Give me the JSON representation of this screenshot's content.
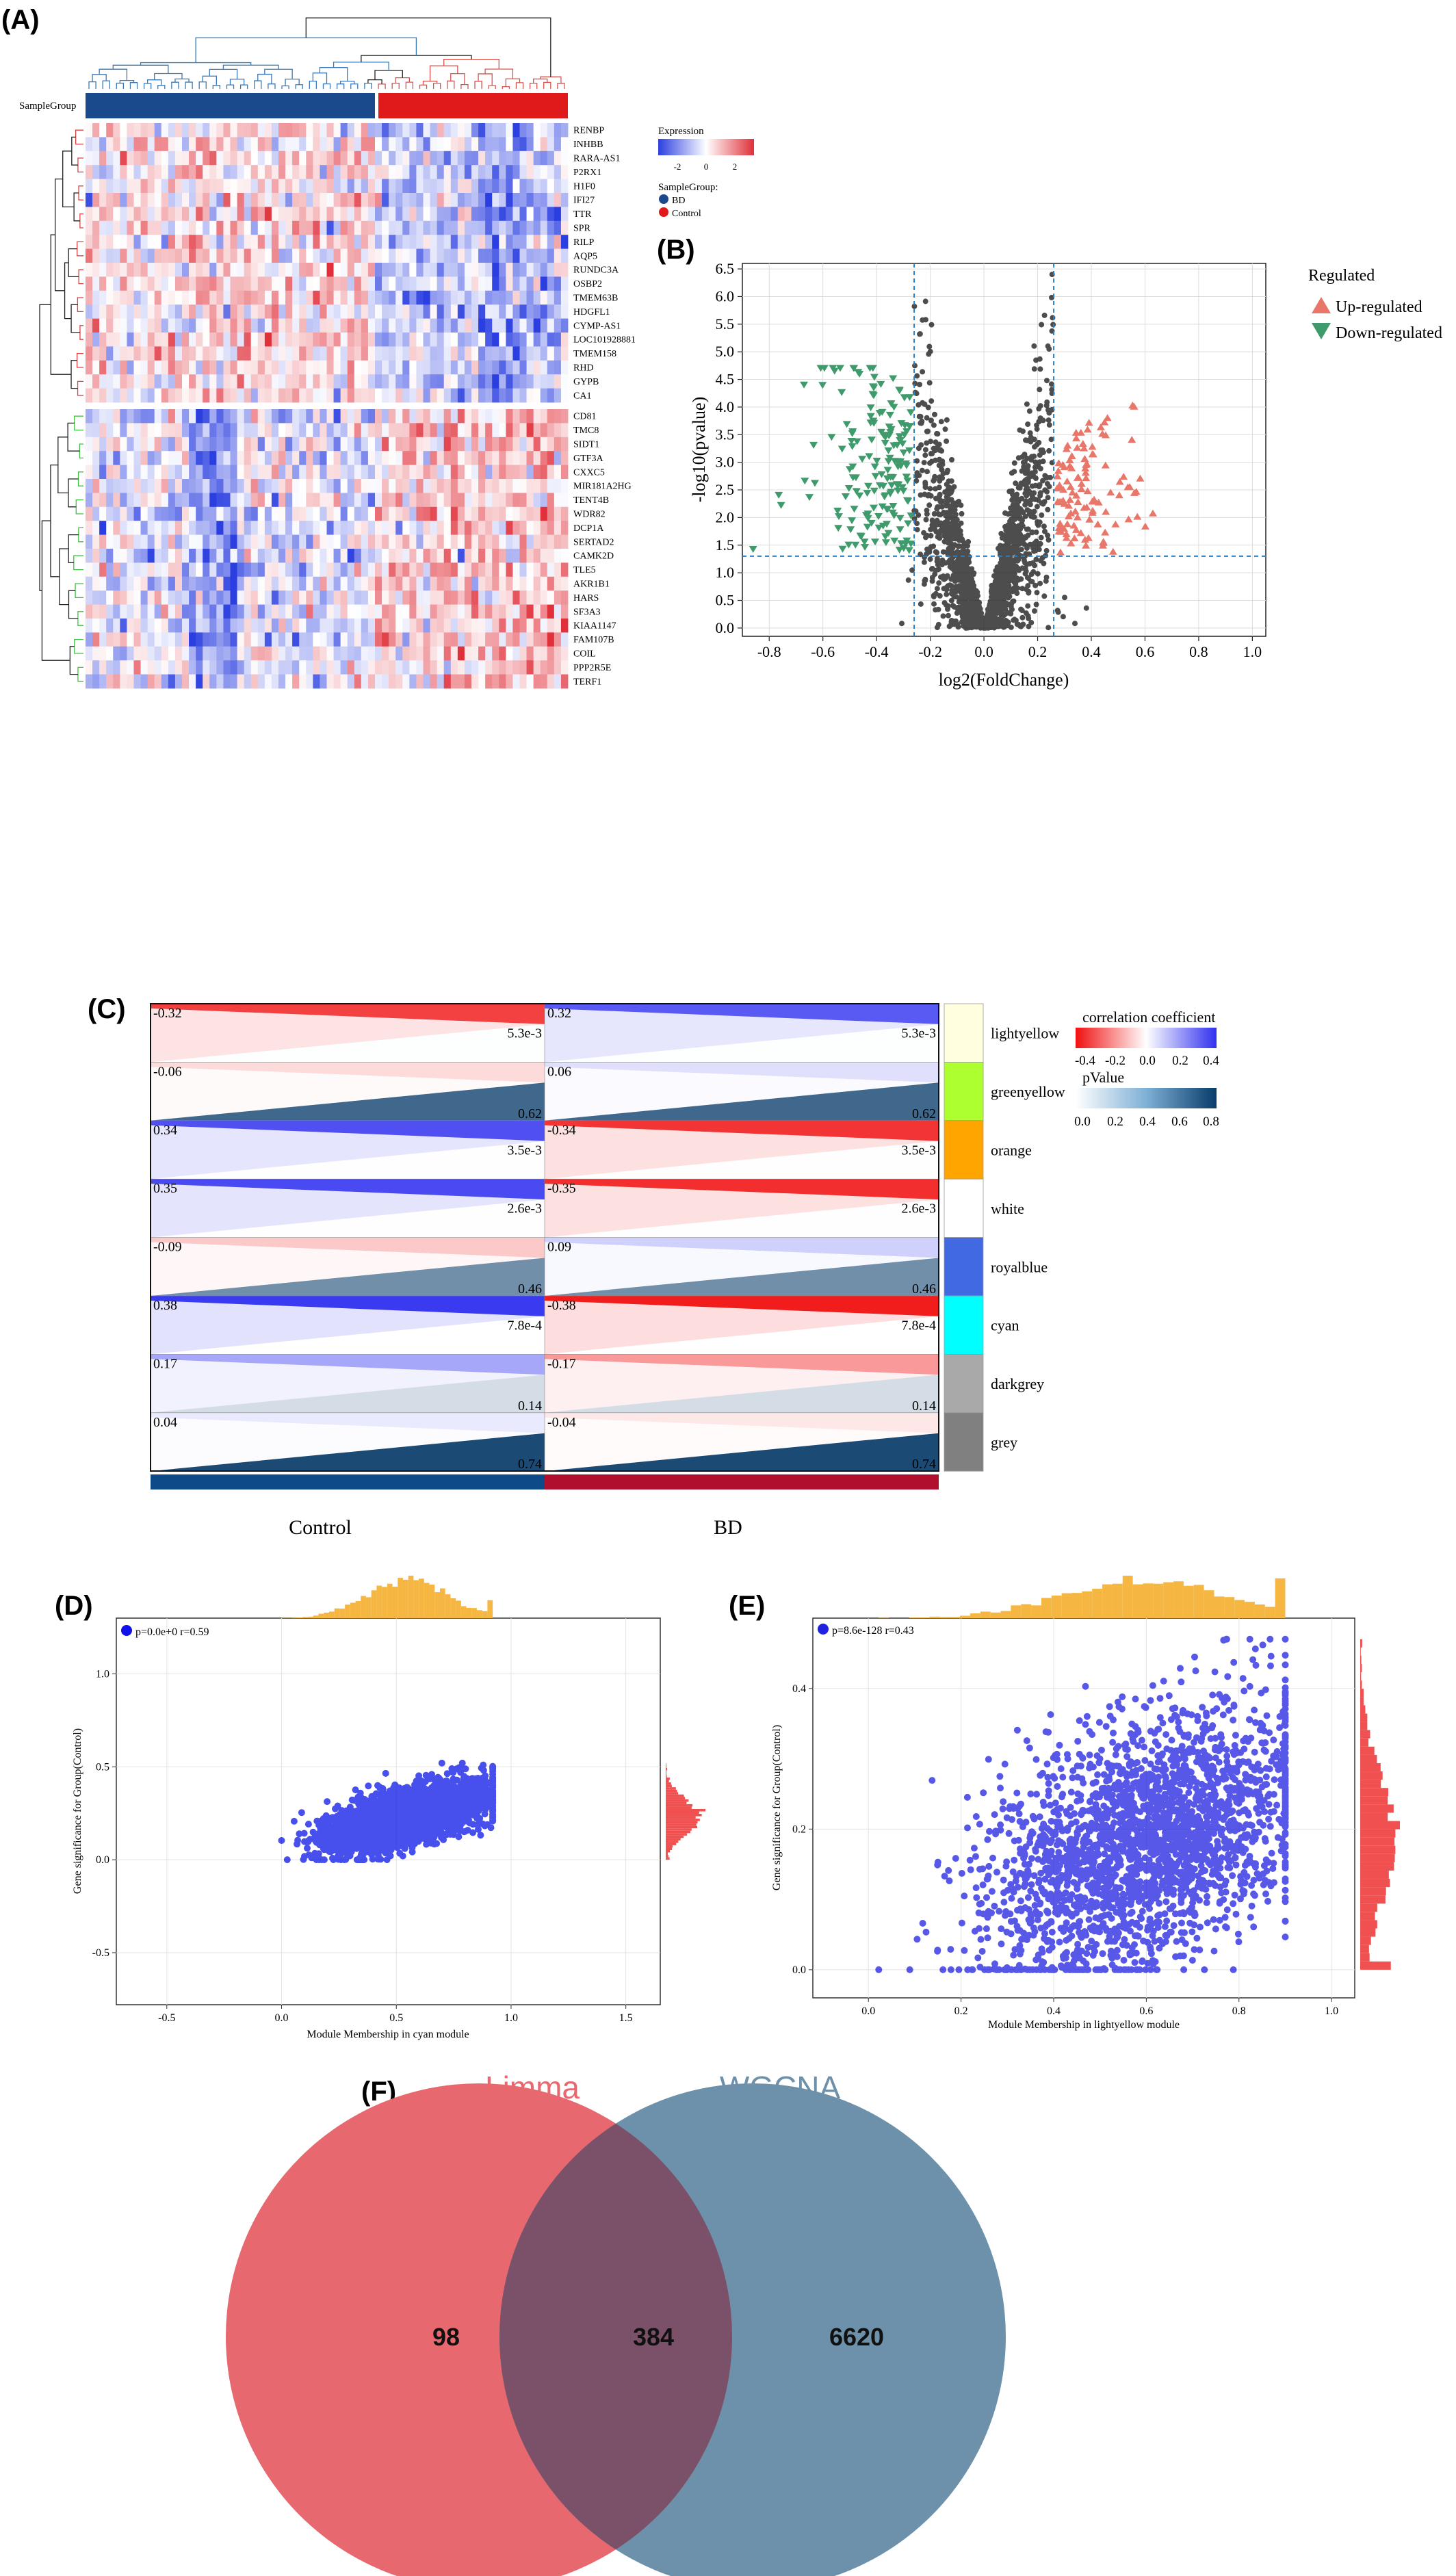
{
  "panels": {
    "A": "(A)",
    "B": "(B)",
    "C": "(C)",
    "D": "(D)",
    "E": "(E)",
    "F": "(F)"
  },
  "heatmap": {
    "sample_group_label": "SampleGroup",
    "genes_up": [
      "RENBP",
      "INHBB",
      "RARA-AS1",
      "P2RX1",
      "H1F0",
      "IFI27",
      "TTR",
      "SPR",
      "RILP",
      "AQP5",
      "RUNDC3A",
      "OSBP2",
      "TMEM63B",
      "HDGFL1",
      "CYMP-AS1",
      "LOC101928881",
      "TMEM158",
      "RHD",
      "GYPB",
      "CA1"
    ],
    "genes_down": [
      "CD81",
      "TMC8",
      "SIDT1",
      "GTF3A",
      "CXXC5",
      "MIR181A2HG",
      "TENT4B",
      "WDR82",
      "DCP1A",
      "SERTAD2",
      "CAMK2D",
      "TLE5",
      "AKR1B1",
      "HARS",
      "SF3A3",
      "KIAA1147",
      "FAM107B",
      "COIL",
      "PPP2R5E",
      "TERF1"
    ],
    "legend": {
      "expression_title": "Expression",
      "ticks": [
        "-2",
        "0",
        "2"
      ],
      "group_title": "SampleGroup:",
      "groups": [
        "BD",
        "Control"
      ],
      "group_colors": [
        "#1a4a8c",
        "#e01a1a"
      ]
    },
    "colors": {
      "low": "#2b3fe0",
      "mid": "#ffffff",
      "high": "#e0303a"
    }
  },
  "chart_data": [
    {
      "panel": "B",
      "type": "scatter",
      "xlabel": "log2(FoldChange)",
      "ylabel": "-log10(pvalue)",
      "xlim": [
        -0.9,
        1.05
      ],
      "ylim": [
        -0.15,
        6.6
      ],
      "xticks": [
        "-0.8",
        "-0.6",
        "-0.4",
        "-0.2",
        "0.0",
        "0.2",
        "0.4",
        "0.6",
        "0.8",
        "1.0"
      ],
      "yticks": [
        "0.0",
        "0.5",
        "1.0",
        "1.5",
        "2.0",
        "2.5",
        "3.0",
        "3.5",
        "4.0",
        "4.5",
        "5.0",
        "5.5",
        "6.0",
        "6.5"
      ],
      "thresholds": {
        "x": [
          -0.26,
          0.26
        ],
        "y": 1.3
      },
      "grid": true,
      "legend": {
        "title": "Regulated",
        "entries": [
          "Up-regulated",
          "Down-regulated"
        ],
        "colors": [
          "#e8776a",
          "#3f9a6c"
        ],
        "position": "right"
      },
      "colors": {
        "ns": "#111111"
      }
    },
    {
      "panel": "C",
      "type": "heatmap",
      "columns": [
        "Control",
        "BD"
      ],
      "modules": [
        "lightyellow",
        "greenyellow",
        "orange",
        "white",
        "royalblue",
        "cyan",
        "darkgrey",
        "grey"
      ],
      "module_colors": [
        "#ffffe0",
        "#adff2f",
        "#ffa500",
        "#ffffff",
        "#4169e1",
        "#00ffff",
        "#a9a9a9",
        "#808080"
      ],
      "correlation": [
        [
          -0.32,
          0.32
        ],
        [
          -0.06,
          0.06
        ],
        [
          0.34,
          -0.34
        ],
        [
          0.35,
          -0.35
        ],
        [
          -0.09,
          0.09
        ],
        [
          0.38,
          -0.38
        ],
        [
          0.17,
          -0.17
        ],
        [
          0.04,
          -0.04
        ]
      ],
      "correlation_labels": [
        [
          "-0.32",
          "0.32"
        ],
        [
          "-0.06",
          "0.06"
        ],
        [
          "0.34",
          "-0.34"
        ],
        [
          "0.35",
          "-0.35"
        ],
        [
          "-0.09",
          "0.09"
        ],
        [
          "0.38",
          "-0.38"
        ],
        [
          "0.17",
          "-0.17"
        ],
        [
          "0.04",
          "-0.04"
        ]
      ],
      "pvalues": [
        0.0053,
        0.62,
        0.0035,
        0.0026,
        0.46,
        0.00078,
        0.14,
        0.74
      ],
      "pvalue_labels": [
        "5.3e-3",
        "0.62",
        "3.5e-3",
        "2.6e-3",
        "0.46",
        "7.8e-4",
        "0.14",
        "0.74"
      ],
      "legend": {
        "corr_title": "correlation coefficient",
        "corr_ticks": [
          "-0.4",
          "-0.2",
          "0.0",
          "0.2",
          "0.4"
        ],
        "p_title": "pValue",
        "p_ticks": [
          "0.0",
          "0.2",
          "0.4",
          "0.6",
          "0.8"
        ]
      },
      "column_bar_colors": [
        "#0f4a88",
        "#b0102e"
      ]
    },
    {
      "panel": "D",
      "type": "scatter",
      "annotation": "p=0.0e+0 r=0.59",
      "xlabel": "Module Membership in cyan module",
      "ylabel": "Gene significance for Group(Control)",
      "xlim": [
        -0.72,
        1.65
      ],
      "ylim": [
        -0.78,
        1.3
      ],
      "xticks": [
        "-0.5",
        "0.0",
        "0.5",
        "1.0",
        "1.5"
      ],
      "yticks": [
        "-0.5",
        "0.0",
        "0.5",
        "1.0"
      ],
      "grid": true,
      "point_color": "#0a14e6",
      "hist_top_color": "#f5b742",
      "hist_right_color": "#f05050"
    },
    {
      "panel": "E",
      "type": "scatter",
      "annotation": "p=8.6e-128 r=0.43",
      "xlabel": "Module Membership in lightyellow module",
      "ylabel": "Gene significance for Group(Control)",
      "xlim": [
        -0.12,
        1.05
      ],
      "ylim": [
        -0.04,
        0.5
      ],
      "xticks": [
        "0.0",
        "0.2",
        "0.4",
        "0.6",
        "0.8",
        "1.0"
      ],
      "yticks": [
        "0.0",
        "0.2",
        "0.4"
      ],
      "grid": true,
      "point_color": "#2020e0",
      "hist_top_color": "#f5b742",
      "hist_right_color": "#f05050"
    }
  ],
  "venn": {
    "left_label": "Limma",
    "right_label": "WGCNA",
    "left_only": "98",
    "overlap": "384",
    "right_only": "6620",
    "left_color": "#e8686f",
    "right_color": "#6d91aa",
    "overlap_color": "#7a5168"
  }
}
